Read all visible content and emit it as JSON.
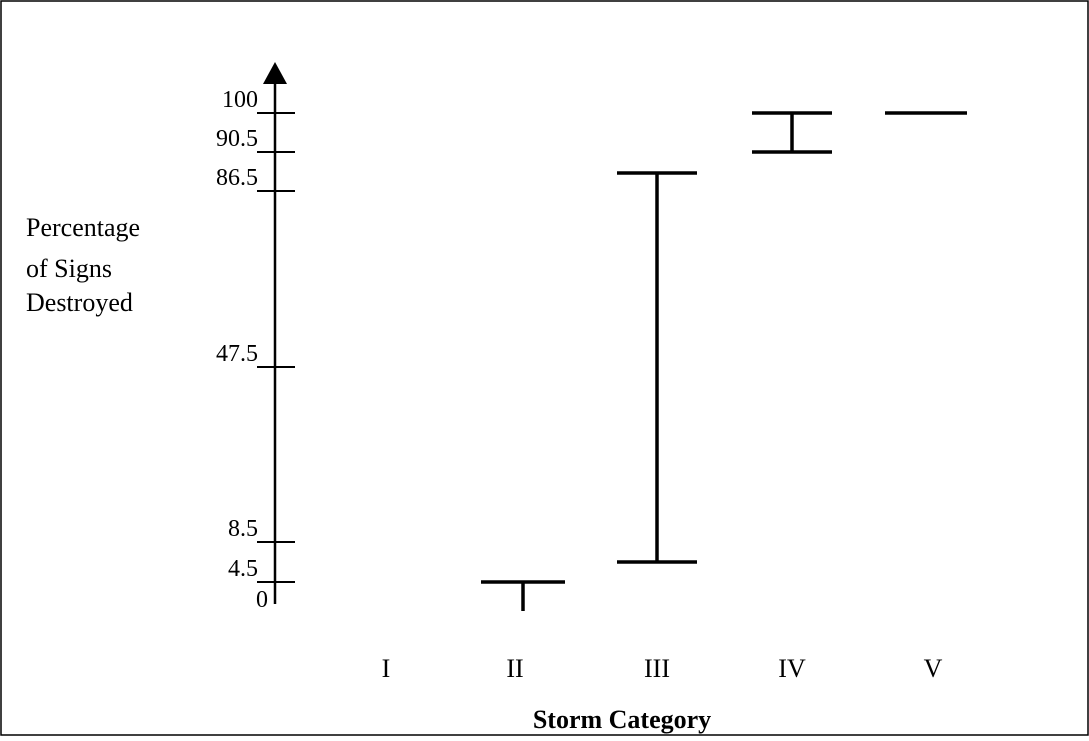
{
  "chart_data": {
    "type": "range",
    "categories": [
      "I",
      "II",
      "III",
      "IV",
      "V"
    ],
    "ranges": [
      {
        "category": "I",
        "low": null,
        "high": null
      },
      {
        "category": "II",
        "low": 0,
        "high": 4.5
      },
      {
        "category": "III",
        "low": 8.5,
        "high": 86.5
      },
      {
        "category": "IV",
        "low": 90.5,
        "high": 100
      },
      {
        "category": "V",
        "low": 100,
        "high": 100
      }
    ],
    "y_ticks": [
      0,
      4.5,
      8.5,
      47.5,
      86.5,
      90.5,
      100
    ],
    "y_tick_labels": [
      "0",
      "4.5",
      "8.5",
      "47.5",
      "86.5",
      "90.5",
      "100"
    ],
    "title": "",
    "xlabel": "Storm Category",
    "ylabel_lines": [
      "Percentage",
      "of Signs",
      "Destroyed"
    ],
    "ylim": [
      0,
      100
    ],
    "grid": false,
    "legend": "none"
  }
}
